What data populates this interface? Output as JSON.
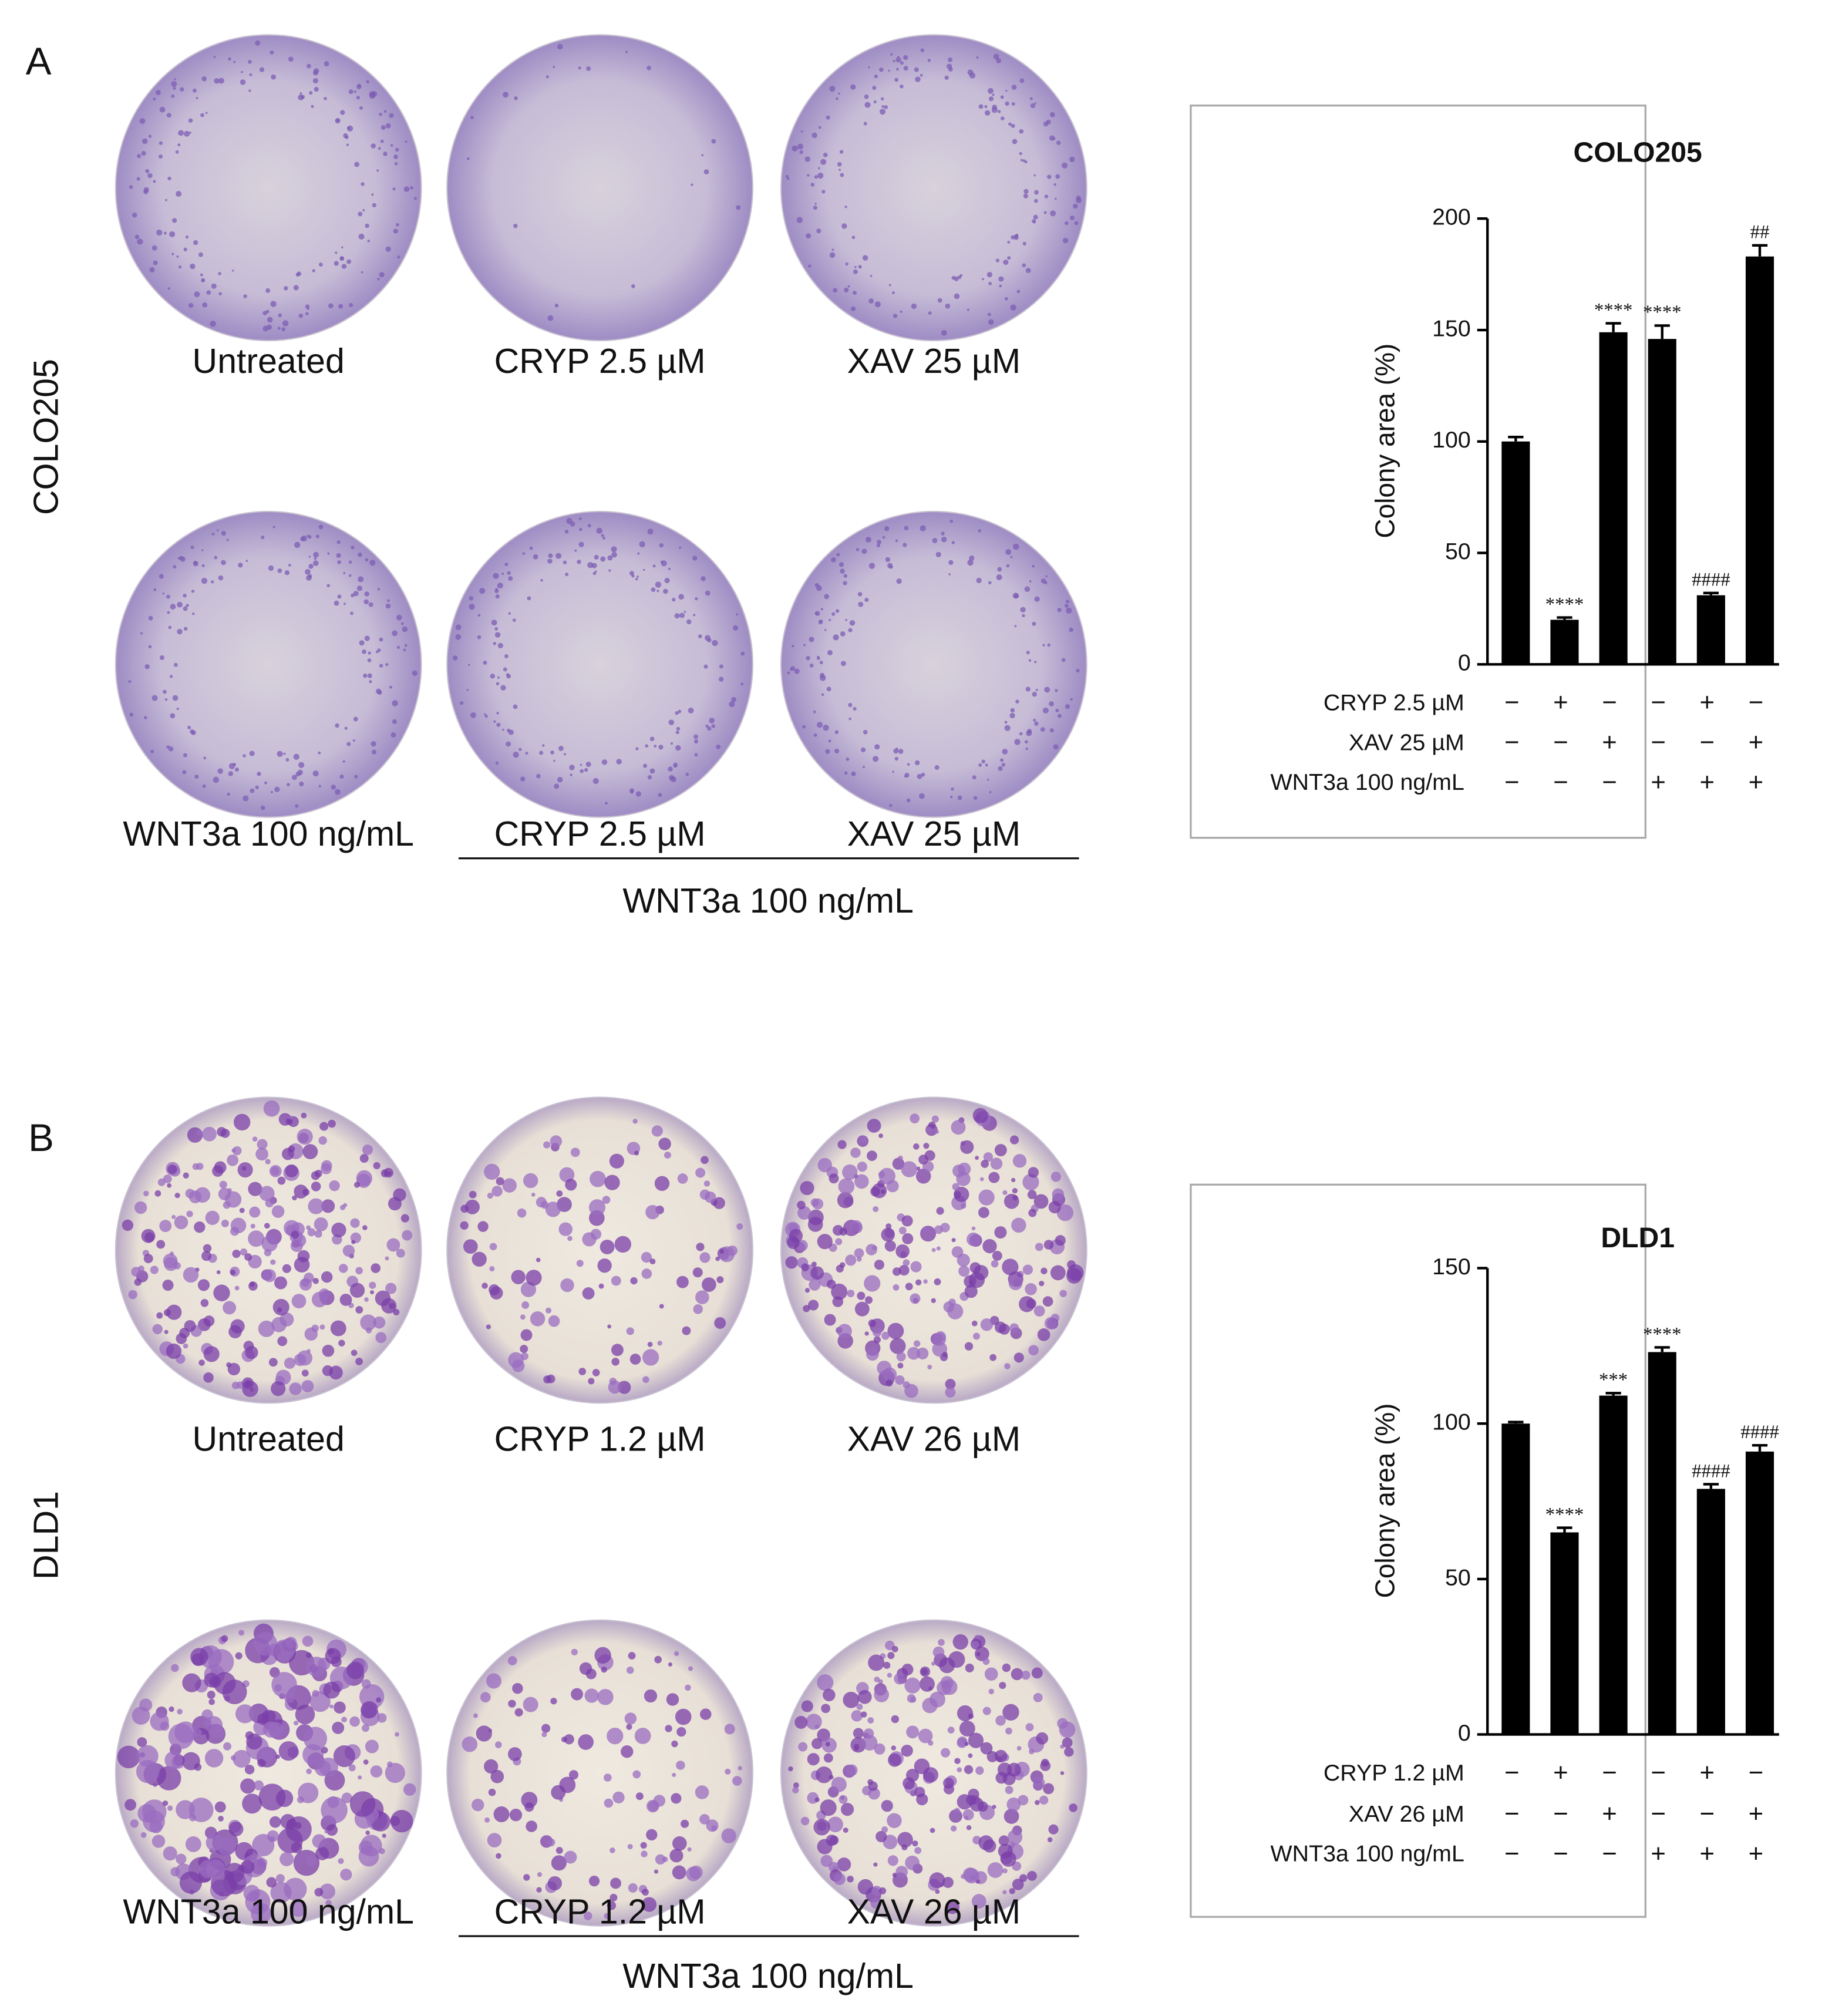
{
  "panels": [
    {
      "label": "A",
      "cell_line": "COLO205",
      "captions": [
        "Untreated",
        "CRYP 2.5 µM",
        "XAV 25 µM",
        "WNT3a 100 ng/mL",
        "CRYP 2.5 µM",
        "XAV 25 µM"
      ],
      "group_label": "WNT3a 100 ng/mL"
    },
    {
      "label": "B",
      "cell_line": "DLD1",
      "captions": [
        "Untreated",
        "CRYP 1.2 µM",
        "XAV 26 µM",
        "WNT3a 100 ng/mL",
        "CRYP 1.2 µM",
        "XAV 26 µM"
      ],
      "group_label": "WNT3a 100 ng/mL"
    }
  ],
  "chart_data": [
    {
      "type": "bar",
      "title": "COLO205",
      "y_label": "Colony area (%)",
      "color": "#000000",
      "values": [
        100,
        20,
        149,
        146,
        31,
        183
      ],
      "errors": [
        2,
        1,
        4,
        6,
        1,
        5
      ],
      "annotations": [
        null,
        "****",
        "****",
        "****",
        "####",
        "##"
      ],
      "ylim": [
        0,
        200
      ],
      "yticks": [
        0,
        50,
        100,
        150,
        200
      ],
      "treatments": [
        {
          "label": "CRYP 2.5 µM",
          "signs": [
            "−",
            "+",
            "−",
            "−",
            "+",
            "−"
          ]
        },
        {
          "label": "XAV 25 µM",
          "signs": [
            "−",
            "−",
            "+",
            "−",
            "−",
            "+"
          ]
        },
        {
          "label": "WNT3a 100 ng/mL",
          "signs": [
            "−",
            "−",
            "−",
            "+",
            "+",
            "+"
          ]
        }
      ]
    },
    {
      "type": "bar",
      "title": "DLD1",
      "y_label": "Colony area (%)",
      "color": "#000000",
      "values": [
        100,
        65,
        109,
        123,
        79,
        91
      ],
      "errors": [
        0.5,
        1.5,
        0.8,
        1.5,
        1.5,
        2
      ],
      "annotations": [
        null,
        "****",
        "***",
        "****",
        "####",
        "####"
      ],
      "ylim": [
        0,
        150
      ],
      "yticks": [
        0,
        50,
        100,
        150
      ],
      "treatments": [
        {
          "label": "CRYP 1.2 µM",
          "signs": [
            "−",
            "+",
            "−",
            "−",
            "+",
            "−"
          ]
        },
        {
          "label": "XAV 26 µM",
          "signs": [
            "−",
            "−",
            "+",
            "−",
            "−",
            "+"
          ]
        },
        {
          "label": "WNT3a 100 ng/mL",
          "signs": [
            "−",
            "−",
            "−",
            "+",
            "+",
            "+"
          ]
        }
      ]
    }
  ]
}
